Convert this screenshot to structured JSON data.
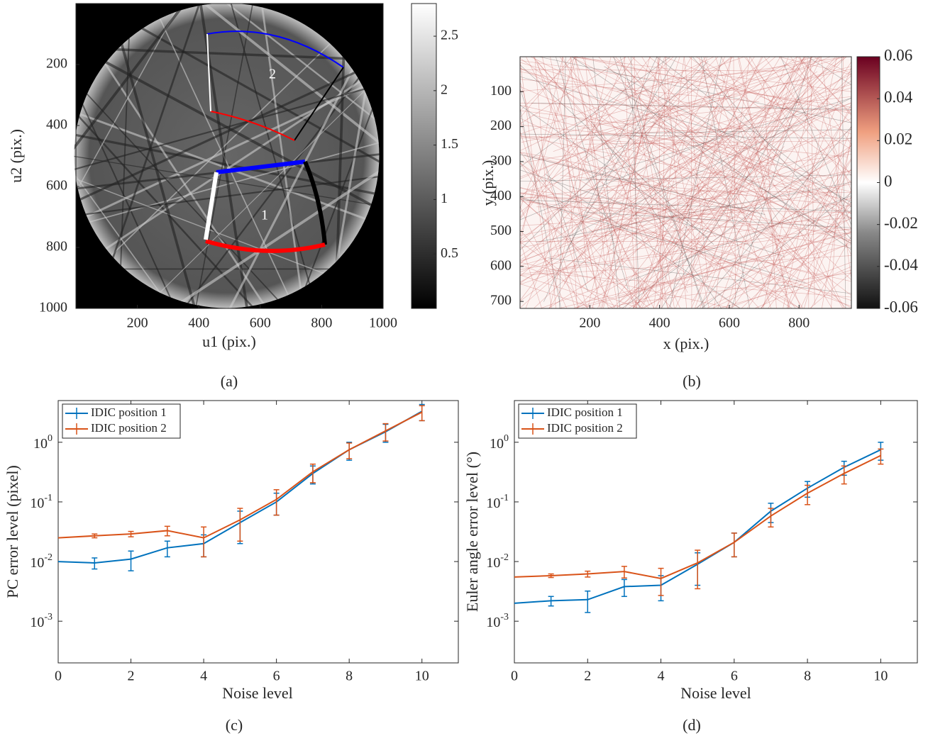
{
  "chart_data": [
    {
      "type": "image",
      "caption": "(a)",
      "xlabel": "u1 (pix.)",
      "ylabel": "u2 (pix.)",
      "xlim": [
        0,
        1000
      ],
      "ylim": [
        0,
        1000
      ],
      "y_reversed": true,
      "xticks": [
        200,
        400,
        600,
        800,
        1000
      ],
      "yticks": [
        200,
        400,
        600,
        800,
        1000
      ],
      "annotations": [
        "1",
        "2"
      ],
      "colormap": "gray",
      "clim": [
        0,
        2.8
      ],
      "cticks": [
        0.5,
        1,
        1.5,
        2,
        2.5
      ]
    },
    {
      "type": "image",
      "caption": "(b)",
      "xlabel": "x (pix.)",
      "ylabel": "y (pix.)",
      "xlim": [
        0,
        950
      ],
      "ylim": [
        0,
        720
      ],
      "y_reversed": true,
      "xticks": [
        200,
        400,
        600,
        800
      ],
      "yticks": [
        100,
        200,
        300,
        400,
        500,
        600,
        700
      ],
      "colormap": "red-white-black",
      "clim": [
        -0.06,
        0.06
      ],
      "cticks": [
        -0.06,
        -0.04,
        -0.02,
        0,
        0.02,
        0.04,
        0.06
      ]
    },
    {
      "type": "line",
      "caption": "(c)",
      "xlabel": "Noise level",
      "ylabel": "PC error level (pixel)",
      "xlim": [
        0,
        11
      ],
      "xticks": [
        0,
        2,
        4,
        6,
        8,
        10
      ],
      "log_y": true,
      "ylim": [
        0.0002,
        5
      ],
      "yticks": [
        {
          "value": 0.001,
          "label": "10^-3"
        },
        {
          "value": 0.01,
          "label": "10^-2"
        },
        {
          "value": 0.1,
          "label": "10^-1"
        },
        {
          "value": 1,
          "label": "10^0"
        }
      ],
      "legend": "upper-left",
      "x": [
        0,
        1,
        2,
        3,
        4,
        5,
        6,
        7,
        8,
        9,
        10
      ],
      "series": [
        {
          "name": "IDIC position 1",
          "color": "#0072bd",
          "values": [
            0.01,
            0.0095,
            0.011,
            0.017,
            0.02,
            0.045,
            0.1,
            0.3,
            0.75,
            1.5,
            3.3
          ],
          "errors": [
            null,
            0.002,
            0.004,
            0.005,
            0.008,
            0.025,
            0.04,
            0.1,
            0.25,
            0.5,
            1.0
          ]
        },
        {
          "name": "IDIC position 2",
          "color": "#d95319",
          "values": [
            0.025,
            0.027,
            0.029,
            0.033,
            0.025,
            0.05,
            0.11,
            0.32,
            0.75,
            1.55,
            3.2
          ],
          "errors": [
            null,
            0.002,
            0.003,
            0.006,
            0.013,
            0.028,
            0.05,
            0.11,
            0.22,
            0.5,
            0.9
          ]
        }
      ]
    },
    {
      "type": "line",
      "caption": "(d)",
      "xlabel": "Noise level",
      "ylabel": "Euler angle error level (°)",
      "xlim": [
        0,
        11
      ],
      "xticks": [
        0,
        2,
        4,
        6,
        8,
        10
      ],
      "log_y": true,
      "ylim": [
        0.0002,
        5
      ],
      "yticks": [
        {
          "value": 0.001,
          "label": "10^-3"
        },
        {
          "value": 0.01,
          "label": "10^-2"
        },
        {
          "value": 0.1,
          "label": "10^-1"
        },
        {
          "value": 1,
          "label": "10^0"
        }
      ],
      "legend": "upper-left",
      "x": [
        0,
        1,
        2,
        3,
        4,
        5,
        6,
        7,
        8,
        9,
        10
      ],
      "series": [
        {
          "name": "IDIC position 1",
          "color": "#0072bd",
          "values": [
            0.002,
            0.0022,
            0.0023,
            0.0038,
            0.004,
            0.009,
            0.021,
            0.07,
            0.17,
            0.38,
            0.75
          ],
          "errors": [
            null,
            0.0004,
            0.0009,
            0.0012,
            0.0018,
            0.005,
            0.009,
            0.025,
            0.05,
            0.1,
            0.25
          ]
        },
        {
          "name": "IDIC position 2",
          "color": "#d95319",
          "values": [
            0.0055,
            0.0058,
            0.0062,
            0.0068,
            0.0052,
            0.0095,
            0.021,
            0.058,
            0.14,
            0.3,
            0.6
          ],
          "errors": [
            null,
            0.0004,
            0.0007,
            0.0015,
            0.0025,
            0.006,
            0.009,
            0.02,
            0.05,
            0.1,
            0.17
          ]
        }
      ]
    }
  ]
}
